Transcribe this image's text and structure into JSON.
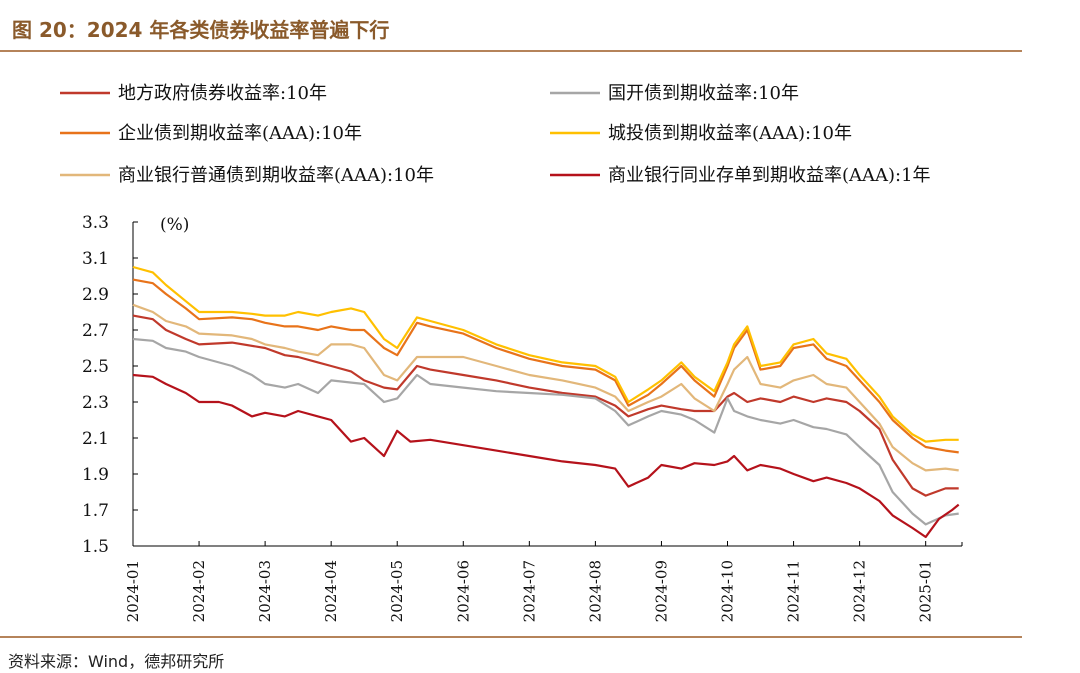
{
  "figure": {
    "title": "图 20：2024 年各类债券收益率普遍下行",
    "source": "资料来源：Wind，德邦研究所"
  },
  "chart_data": {
    "type": "line",
    "ylabel": "(%)",
    "ylim": [
      1.5,
      3.3
    ],
    "yticks": [
      "1.5",
      "1.7",
      "1.9",
      "2.1",
      "2.3",
      "2.5",
      "2.7",
      "2.9",
      "3.1",
      "3.3"
    ],
    "x_labels": [
      "2024-01",
      "2024-02",
      "2024-03",
      "2024-04",
      "2024-05",
      "2024-06",
      "2024-07",
      "2024-08",
      "2024-09",
      "2024-10",
      "2024-11",
      "2024-12",
      "2025-01"
    ],
    "x_range_months": [
      0,
      12.55
    ],
    "series": [
      {
        "name": "地方政府债券收益率:10年",
        "color": "#c0392b",
        "x": [
          0,
          0.3,
          0.5,
          0.8,
          1,
          1.5,
          2,
          2.3,
          2.5,
          2.8,
          3,
          3.3,
          3.5,
          3.8,
          4,
          4.3,
          4.5,
          5,
          5.5,
          6,
          6.5,
          7,
          7.3,
          7.5,
          7.8,
          8,
          8.3,
          8.5,
          8.8,
          9,
          9.1,
          9.3,
          9.5,
          9.8,
          10,
          10.3,
          10.5,
          10.8,
          11,
          11.3,
          11.5,
          11.8,
          12,
          12.3,
          12.5
        ],
        "y": [
          2.78,
          2.76,
          2.7,
          2.65,
          2.62,
          2.63,
          2.6,
          2.56,
          2.55,
          2.52,
          2.5,
          2.47,
          2.42,
          2.38,
          2.37,
          2.5,
          2.48,
          2.45,
          2.42,
          2.38,
          2.35,
          2.33,
          2.28,
          2.22,
          2.26,
          2.28,
          2.26,
          2.25,
          2.25,
          2.33,
          2.35,
          2.3,
          2.32,
          2.3,
          2.33,
          2.3,
          2.32,
          2.3,
          2.25,
          2.15,
          1.98,
          1.82,
          1.78,
          1.82,
          1.82
        ]
      },
      {
        "name": "国开债到期收益率:10年",
        "color": "#a6a6a6",
        "x": [
          0,
          0.3,
          0.5,
          0.8,
          1,
          1.5,
          1.8,
          2,
          2.3,
          2.5,
          2.8,
          3,
          3.5,
          3.8,
          4,
          4.3,
          4.5,
          5,
          5.5,
          6,
          6.5,
          7,
          7.3,
          7.5,
          7.8,
          8,
          8.3,
          8.5,
          8.8,
          9,
          9.1,
          9.3,
          9.5,
          9.8,
          10,
          10.3,
          10.5,
          10.8,
          11,
          11.3,
          11.5,
          11.8,
          12,
          12.3,
          12.5
        ],
        "y": [
          2.65,
          2.64,
          2.6,
          2.58,
          2.55,
          2.5,
          2.45,
          2.4,
          2.38,
          2.4,
          2.35,
          2.42,
          2.4,
          2.3,
          2.32,
          2.45,
          2.4,
          2.38,
          2.36,
          2.35,
          2.34,
          2.32,
          2.25,
          2.17,
          2.22,
          2.25,
          2.23,
          2.2,
          2.13,
          2.32,
          2.25,
          2.22,
          2.2,
          2.18,
          2.2,
          2.16,
          2.15,
          2.12,
          2.05,
          1.95,
          1.8,
          1.68,
          1.62,
          1.67,
          1.68
        ]
      },
      {
        "name": "企业债到期收益率(AAA):10年",
        "color": "#e8731a",
        "x": [
          0,
          0.3,
          0.5,
          0.8,
          1,
          1.5,
          1.8,
          2,
          2.3,
          2.5,
          2.8,
          3,
          3.3,
          3.5,
          3.8,
          4,
          4.3,
          4.5,
          5,
          5.5,
          6,
          6.5,
          7,
          7.3,
          7.5,
          7.8,
          8,
          8.3,
          8.5,
          8.8,
          9,
          9.1,
          9.3,
          9.5,
          9.8,
          10,
          10.3,
          10.5,
          10.8,
          11,
          11.3,
          11.5,
          11.8,
          12,
          12.3,
          12.5
        ],
        "y": [
          2.98,
          2.96,
          2.9,
          2.82,
          2.76,
          2.77,
          2.76,
          2.74,
          2.72,
          2.72,
          2.7,
          2.72,
          2.7,
          2.7,
          2.6,
          2.56,
          2.74,
          2.72,
          2.68,
          2.6,
          2.54,
          2.5,
          2.48,
          2.42,
          2.28,
          2.34,
          2.4,
          2.5,
          2.42,
          2.33,
          2.5,
          2.6,
          2.7,
          2.48,
          2.5,
          2.6,
          2.62,
          2.54,
          2.5,
          2.42,
          2.3,
          2.2,
          2.1,
          2.05,
          2.03,
          2.02
        ]
      },
      {
        "name": "城投债到期收益率(AAA):10年",
        "color": "#ffc000",
        "x": [
          0,
          0.3,
          0.5,
          0.8,
          1,
          1.5,
          1.8,
          2,
          2.3,
          2.5,
          2.8,
          3,
          3.3,
          3.5,
          3.8,
          4,
          4.3,
          4.5,
          5,
          5.5,
          6,
          6.5,
          7,
          7.3,
          7.5,
          7.8,
          8,
          8.3,
          8.5,
          8.8,
          9,
          9.1,
          9.3,
          9.5,
          9.8,
          10,
          10.3,
          10.5,
          10.8,
          11,
          11.3,
          11.5,
          11.8,
          12,
          12.3,
          12.5
        ],
        "y": [
          3.05,
          3.02,
          2.95,
          2.86,
          2.8,
          2.8,
          2.79,
          2.78,
          2.78,
          2.8,
          2.78,
          2.8,
          2.82,
          2.8,
          2.65,
          2.6,
          2.77,
          2.75,
          2.7,
          2.62,
          2.56,
          2.52,
          2.5,
          2.44,
          2.3,
          2.37,
          2.42,
          2.52,
          2.44,
          2.36,
          2.52,
          2.62,
          2.72,
          2.5,
          2.52,
          2.62,
          2.65,
          2.57,
          2.54,
          2.45,
          2.33,
          2.22,
          2.12,
          2.08,
          2.09,
          2.09
        ]
      },
      {
        "name": "商业银行普通债到期收益率(AAA):10年",
        "color": "#e2b77a",
        "x": [
          0,
          0.3,
          0.5,
          0.8,
          1,
          1.5,
          1.8,
          2,
          2.3,
          2.5,
          2.8,
          3,
          3.3,
          3.5,
          3.8,
          4,
          4.3,
          4.5,
          5,
          5.5,
          6,
          6.5,
          7,
          7.3,
          7.5,
          7.8,
          8,
          8.3,
          8.5,
          8.8,
          9,
          9.1,
          9.3,
          9.5,
          9.8,
          10,
          10.3,
          10.5,
          10.8,
          11,
          11.3,
          11.5,
          11.8,
          12,
          12.3,
          12.5
        ],
        "y": [
          2.84,
          2.8,
          2.75,
          2.72,
          2.68,
          2.67,
          2.65,
          2.62,
          2.6,
          2.58,
          2.56,
          2.62,
          2.62,
          2.6,
          2.45,
          2.42,
          2.55,
          2.55,
          2.55,
          2.5,
          2.45,
          2.42,
          2.38,
          2.33,
          2.25,
          2.3,
          2.33,
          2.4,
          2.32,
          2.25,
          2.4,
          2.48,
          2.55,
          2.4,
          2.38,
          2.42,
          2.45,
          2.4,
          2.38,
          2.3,
          2.18,
          2.05,
          1.96,
          1.92,
          1.93,
          1.92
        ]
      },
      {
        "name": "商业银行同业存单到期收益率(AAA):1年",
        "color": "#b5121b",
        "x": [
          0,
          0.3,
          0.5,
          0.8,
          1,
          1.3,
          1.5,
          1.8,
          2,
          2.3,
          2.5,
          2.8,
          3,
          3.3,
          3.5,
          3.8,
          4,
          4.2,
          4.5,
          5,
          5.5,
          6,
          6.5,
          7,
          7.3,
          7.5,
          7.8,
          8,
          8.3,
          8.5,
          8.8,
          9,
          9.1,
          9.3,
          9.5,
          9.8,
          10,
          10.3,
          10.5,
          10.8,
          11,
          11.3,
          11.5,
          11.8,
          12,
          12.2,
          12.4,
          12.5
        ],
        "y": [
          2.45,
          2.44,
          2.4,
          2.35,
          2.3,
          2.3,
          2.28,
          2.22,
          2.24,
          2.22,
          2.25,
          2.22,
          2.2,
          2.08,
          2.1,
          2.0,
          2.14,
          2.08,
          2.09,
          2.06,
          2.03,
          2.0,
          1.97,
          1.95,
          1.93,
          1.83,
          1.88,
          1.95,
          1.93,
          1.96,
          1.95,
          1.97,
          2.0,
          1.92,
          1.95,
          1.93,
          1.9,
          1.86,
          1.88,
          1.85,
          1.82,
          1.75,
          1.67,
          1.6,
          1.55,
          1.65,
          1.7,
          1.73
        ]
      }
    ]
  }
}
